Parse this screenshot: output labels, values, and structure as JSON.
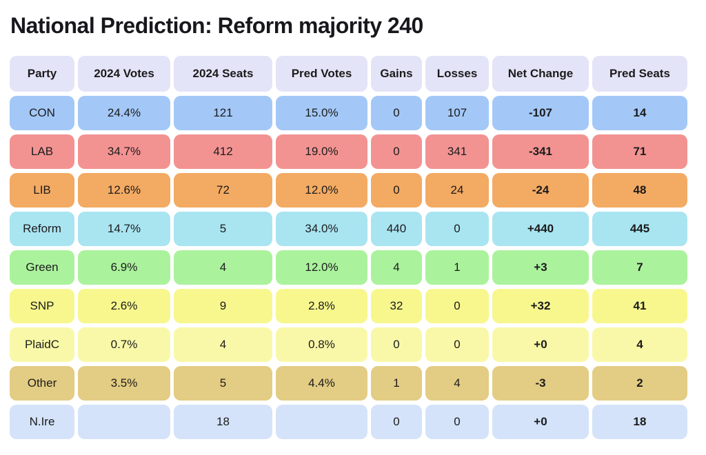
{
  "chart_data": {
    "type": "table",
    "title": "National Prediction: Reform majority 240",
    "header_bg": "#e4e4f8",
    "text_color": "#1b1b1b",
    "columns": [
      "Party",
      "2024 Votes",
      "2024 Seats",
      "Pred Votes",
      "Gains",
      "Losses",
      "Net Change",
      "Pred Seats"
    ],
    "rows": [
      {
        "party": "CON",
        "votes2024": "24.4%",
        "seats2024": "121",
        "predVotes": "15.0%",
        "gains": "0",
        "losses": "107",
        "netChange": "-107",
        "predSeats": "14",
        "color": "#a3c8f7"
      },
      {
        "party": "LAB",
        "votes2024": "34.7%",
        "seats2024": "412",
        "predVotes": "19.0%",
        "gains": "0",
        "losses": "341",
        "netChange": "-341",
        "predSeats": "71",
        "color": "#f29392"
      },
      {
        "party": "LIB",
        "votes2024": "12.6%",
        "seats2024": "72",
        "predVotes": "12.0%",
        "gains": "0",
        "losses": "24",
        "netChange": "-24",
        "predSeats": "48",
        "color": "#f3aa63"
      },
      {
        "party": "Reform",
        "votes2024": "14.7%",
        "seats2024": "5",
        "predVotes": "34.0%",
        "gains": "440",
        "losses": "0",
        "netChange": "+440",
        "predSeats": "445",
        "color": "#a9e4f1"
      },
      {
        "party": "Green",
        "votes2024": "6.9%",
        "seats2024": "4",
        "predVotes": "12.0%",
        "gains": "4",
        "losses": "1",
        "netChange": "+3",
        "predSeats": "7",
        "color": "#abf29d"
      },
      {
        "party": "SNP",
        "votes2024": "2.6%",
        "seats2024": "9",
        "predVotes": "2.8%",
        "gains": "32",
        "losses": "0",
        "netChange": "+32",
        "predSeats": "41",
        "color": "#f7f78e"
      },
      {
        "party": "PlaidC",
        "votes2024": "0.7%",
        "seats2024": "4",
        "predVotes": "0.8%",
        "gains": "0",
        "losses": "0",
        "netChange": "+0",
        "predSeats": "4",
        "color": "#f9f8a8"
      },
      {
        "party": "Other",
        "votes2024": "3.5%",
        "seats2024": "5",
        "predVotes": "4.4%",
        "gains": "1",
        "losses": "4",
        "netChange": "-3",
        "predSeats": "2",
        "color": "#e3cc83"
      },
      {
        "party": "N.Ire",
        "votes2024": "",
        "seats2024": "18",
        "predVotes": "",
        "gains": "0",
        "losses": "0",
        "netChange": "+0",
        "predSeats": "18",
        "color": "#d4e3f9"
      }
    ]
  }
}
